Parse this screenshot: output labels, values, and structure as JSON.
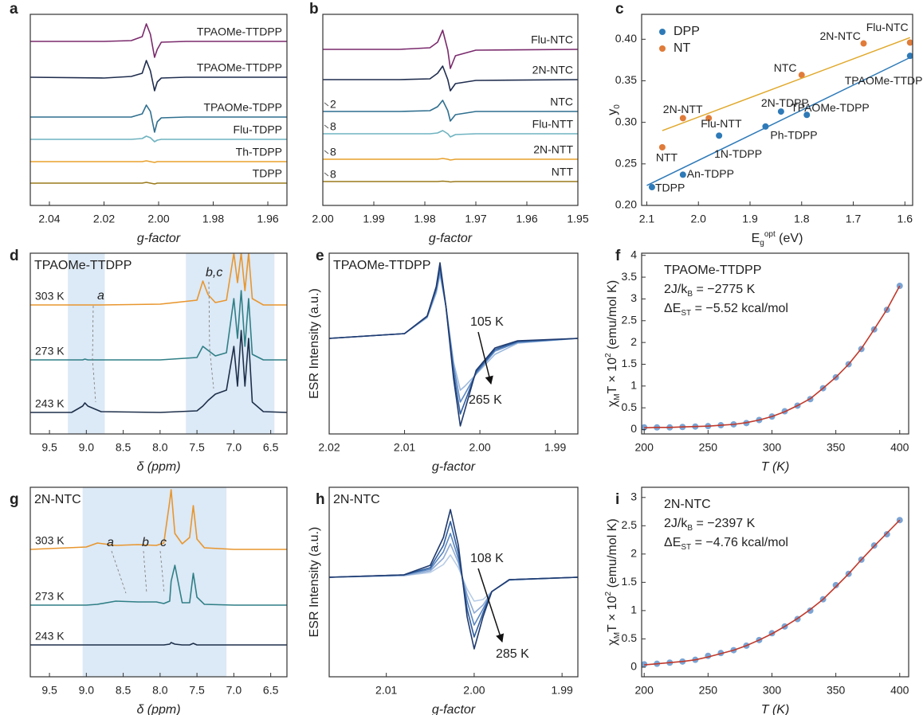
{
  "chart_data": [
    {
      "panel": "a",
      "type": "spectra",
      "x_label": "g-factor",
      "xlim": [
        2.047,
        1.953
      ],
      "xticks": [
        2.04,
        2.02,
        {
          "value": 2,
          "label": "2.00"
        },
        1.98,
        1.96
      ],
      "ylim": [
        0,
        24
      ],
      "series_label_position": "right",
      "x": [
        2.047,
        2.02,
        2.01,
        2.006,
        2.0045,
        2.003,
        2.0015,
        2.0005,
        1.999,
        1.99,
        1.97,
        1.953
      ],
      "series": [
        {
          "name": "TPAOMe-TTDPP",
          "color": "#7a2a6c",
          "values": [
            20.6,
            20.6,
            20.7,
            21.2,
            22.8,
            21.5,
            18.6,
            19.6,
            20.5,
            20.6,
            20.6,
            20.6
          ]
        },
        {
          "name": "TPAOMe-TTDPP",
          "color": "#1f2d4e",
          "values": [
            16.1,
            16.0,
            16.2,
            16.6,
            18.2,
            16.9,
            14.4,
            15.5,
            16.0,
            16.1,
            16.1,
            16.1
          ]
        },
        {
          "name": "TPAOMe-TDPP",
          "color": "#2f6f8f",
          "values": [
            11.1,
            11.1,
            11.1,
            11.5,
            12.6,
            11.8,
            9.2,
            10.5,
            11.0,
            11.1,
            11.1,
            11.1
          ]
        },
        {
          "name": "Flu-TDPP",
          "color": "#6fb3c0",
          "values": [
            8.3,
            8.3,
            8.3,
            8.4,
            8.7,
            8.5,
            8.0,
            8.2,
            8.3,
            8.3,
            8.3,
            8.3
          ]
        },
        {
          "name": "Th-TDPP",
          "color": "#e8a12c",
          "values": [
            5.5,
            5.5,
            5.5,
            5.5,
            5.6,
            5.5,
            5.4,
            5.5,
            5.5,
            5.5,
            5.5,
            5.5
          ]
        },
        {
          "name": "TDPP",
          "color": "#9a7a1c",
          "values": [
            2.8,
            2.8,
            2.8,
            2.8,
            2.9,
            2.8,
            2.7,
            2.8,
            2.8,
            2.8,
            2.8,
            2.8
          ]
        }
      ]
    },
    {
      "panel": "b",
      "type": "spectra",
      "x_label": "g-factor",
      "xlim": [
        2.0,
        1.95
      ],
      "xticks": [
        {
          "value": 2,
          "label": "2.00"
        },
        1.99,
        1.98,
        1.97,
        1.96,
        1.95
      ],
      "ylim": [
        0,
        24
      ],
      "series_label_position": "right",
      "scale_labels": [
        null,
        null,
        "2",
        "8",
        "8",
        "8"
      ],
      "x": [
        2.0,
        1.985,
        1.979,
        1.9775,
        1.9765,
        1.9755,
        1.975,
        1.974,
        1.97,
        1.95
      ],
      "series": [
        {
          "name": "Flu-NTC",
          "color": "#7a2a6c",
          "values": [
            19.6,
            19.6,
            19.8,
            20.5,
            22.0,
            19.5,
            17.2,
            18.8,
            19.5,
            19.6
          ]
        },
        {
          "name": "2N-NTC",
          "color": "#1f2d4e",
          "values": [
            15.8,
            15.8,
            15.9,
            16.6,
            17.5,
            15.8,
            14.4,
            15.3,
            15.7,
            15.8
          ]
        },
        {
          "name": "NTC",
          "color": "#2f6f8f",
          "values": [
            11.8,
            11.8,
            11.9,
            12.4,
            13.2,
            11.9,
            10.6,
            11.4,
            11.8,
            11.8
          ]
        },
        {
          "name": "Flu-NTT",
          "color": "#6fb3c0",
          "values": [
            9.0,
            9.0,
            9.0,
            9.1,
            9.4,
            9.0,
            8.6,
            8.9,
            9.0,
            9.0
          ]
        },
        {
          "name": "2N-NTT",
          "color": "#e8a12c",
          "values": [
            5.8,
            5.8,
            5.8,
            5.8,
            5.9,
            5.8,
            5.7,
            5.8,
            5.8,
            5.8
          ]
        },
        {
          "name": "NTT",
          "color": "#9a7a1c",
          "values": [
            3.0,
            3.0,
            3.0,
            3.0,
            3.05,
            3.0,
            2.95,
            3.0,
            3.0,
            3.0
          ]
        }
      ]
    },
    {
      "panel": "c",
      "type": "scatter",
      "x_label": [
        "E",
        "g",
        "opt",
        " (eV)"
      ],
      "y_label": [
        "y",
        "0"
      ],
      "xlim": [
        2.11,
        1.585
      ],
      "xticks": [
        2.1,
        {
          "value": 2,
          "label": "2.0"
        },
        1.9,
        1.8,
        1.7,
        1.6
      ],
      "ylim": [
        0.2,
        0.43
      ],
      "yticks": [
        {
          "value": 0.2,
          "label": "0.20"
        },
        0.25,
        {
          "value": 0.3,
          "label": "0.30"
        },
        0.35,
        {
          "value": 0.4,
          "label": "0.40"
        }
      ],
      "legend": "upper left",
      "series": [
        {
          "name": "DPP",
          "color": "#2e7ab8",
          "style": "points",
          "x": [
            2.09,
            2.03,
            1.96,
            1.87,
            1.84,
            1.79,
            1.59
          ],
          "values": [
            0.222,
            0.237,
            0.284,
            0.295,
            0.313,
            0.309,
            0.38
          ],
          "point_labels": [
            "TDPP",
            "An-TDPP",
            "1N-TDPP",
            "Ph-TDPP",
            "2N-TDPP",
            "TPAOMe-TDPP",
            "TPAOMe-TTDPP"
          ],
          "fit_x": [
            2.1,
            1.59
          ],
          "fit_values": [
            0.224,
            0.378
          ]
        },
        {
          "name": "NT",
          "color": "#e07b39",
          "style": "points",
          "x": [
            2.07,
            2.03,
            1.98,
            1.8,
            1.68,
            1.59
          ],
          "values": [
            0.27,
            0.305,
            0.305,
            0.357,
            0.395,
            0.396
          ],
          "point_labels": [
            "NTT",
            "2N-NTT",
            "Flu-NTT",
            "NTC",
            "2N-NTC",
            "Flu-NTC"
          ],
          "fit_x": [
            2.07,
            1.59
          ],
          "fit_values": [
            0.29,
            0.402
          ],
          "fit_color": "#e0a82a"
        }
      ]
    },
    {
      "panel": "d",
      "type": "spectra",
      "title": "TPAOMe-TTDPP",
      "x_label": "δ (ppm)",
      "xlim": [
        9.76,
        6.28
      ],
      "xticks": [
        9.5,
        {
          "value": 9,
          "label": "9.0"
        },
        8.5,
        {
          "value": 8,
          "label": "8.0"
        },
        7.5,
        {
          "value": 7,
          "label": "7.0"
        },
        6.5
      ],
      "ylim": [
        0,
        22.7
      ],
      "shaded": [
        [
          9.25,
          8.75
        ],
        [
          7.65,
          6.45
        ]
      ],
      "series_label_position": "left",
      "annotations": [
        "a",
        "b,c"
      ],
      "x": [
        9.76,
        9.2,
        9.05,
        9.02,
        8.98,
        8.8,
        8.0,
        7.5,
        7.42,
        7.35,
        7.25,
        7.1,
        7.0,
        6.95,
        6.9,
        6.85,
        6.8,
        6.75,
        6.6,
        6.28
      ],
      "series": [
        {
          "name": "303 K",
          "color": "#e8962e",
          "values": [
            16.2,
            16.2,
            16.2,
            16.2,
            16.2,
            16.2,
            16.3,
            16.8,
            19.2,
            17.5,
            16.5,
            16.8,
            22.7,
            19,
            22.7,
            18,
            22.7,
            17,
            16.2,
            16.2
          ]
        },
        {
          "name": "273 K",
          "color": "#2f7f86",
          "values": [
            9.3,
            9.3,
            9.3,
            9.4,
            9.3,
            9.3,
            9.3,
            9.6,
            11.0,
            10.5,
            9.8,
            10.2,
            17,
            12,
            18,
            11,
            17,
            10,
            9.3,
            9.3
          ]
        },
        {
          "name": "243 K",
          "color": "#1d2f4a",
          "values": [
            2.7,
            2.7,
            3.5,
            3.9,
            3.5,
            2.8,
            2.7,
            2.9,
            3.5,
            4.2,
            5.0,
            5.5,
            11,
            6,
            13,
            6,
            12,
            4,
            2.8,
            2.7
          ]
        }
      ]
    },
    {
      "panel": "e",
      "type": "spectra",
      "title": "TPAOMe-TTDPP",
      "x_label": "g-factor",
      "y_label": "ESR Intensity (a.u.)",
      "xlim": [
        2.02,
        1.987
      ],
      "xticks": [
        2.02,
        2.01,
        {
          "value": 2,
          "label": "2.00"
        },
        1.99
      ],
      "ylim": [
        -12,
        10.7
      ],
      "annotations": [
        "105 K",
        "265 K"
      ],
      "x": [
        2.02,
        2.01,
        2.007,
        2.0058,
        2.0053,
        2.0045,
        2.0035,
        2.0026,
        2.002,
        2.0005,
        1.998,
        1.995,
        1.987
      ],
      "series": [
        {
          "color": "#9cb8dd",
          "values": [
            0,
            0.6,
            2.6,
            5.7,
            8.0,
            4,
            -3,
            -6.5,
            -6,
            -4.5,
            -2,
            -0.6,
            0
          ]
        },
        {
          "color": "#5b87c0",
          "values": [
            0,
            0.6,
            2.7,
            6.0,
            8.5,
            4,
            -3.5,
            -8,
            -7,
            -4.4,
            -1.6,
            -0.5,
            0
          ]
        },
        {
          "color": "#2f5d9e",
          "values": [
            0,
            0.6,
            2.8,
            6.3,
            9.0,
            4,
            -4.3,
            -9.5,
            -8,
            -4.2,
            -1.4,
            -0.4,
            0
          ]
        },
        {
          "color": "#1f3a6e",
          "values": [
            0,
            0.6,
            2.8,
            6.5,
            9.5,
            4,
            -5,
            -11,
            -9,
            -4,
            -1.2,
            -0.3,
            0
          ]
        }
      ]
    },
    {
      "panel": "f",
      "type": "scatter",
      "title": "TPAOMe-TTDPP",
      "text_lines": [
        [
          "2J/k",
          "B",
          " = −2775 K"
        ],
        [
          "ΔE",
          "ST",
          " = −5.52 kcal/mol"
        ]
      ],
      "x_label": "T (K)",
      "y_label": [
        "χ",
        "M",
        "T × 10",
        "2",
        " (emu/mol K)"
      ],
      "xlim": [
        198,
        407
      ],
      "xticks": [
        200,
        250,
        300,
        350,
        400
      ],
      "ylim": [
        -0.1,
        4.05
      ],
      "yticks": [
        0,
        0.5,
        1,
        1.5,
        2,
        2.5,
        3,
        3.5,
        4
      ],
      "x": [
        200,
        210,
        220,
        230,
        240,
        250,
        260,
        270,
        280,
        290,
        300,
        310,
        320,
        330,
        340,
        350,
        360,
        370,
        380,
        390,
        400
      ],
      "series": [
        {
          "color": "#4f86c6",
          "style": "points",
          "values": [
            0.05,
            0.05,
            0.05,
            0.06,
            0.07,
            0.08,
            0.1,
            0.12,
            0.15,
            0.22,
            0.3,
            0.42,
            0.55,
            0.7,
            0.95,
            1.2,
            1.5,
            1.85,
            2.3,
            2.75,
            3.3
          ]
        },
        {
          "color": "#c0392b",
          "style": "line",
          "values": [
            0.04,
            0.05,
            0.05,
            0.06,
            0.07,
            0.08,
            0.1,
            0.12,
            0.16,
            0.22,
            0.3,
            0.41,
            0.55,
            0.71,
            0.95,
            1.2,
            1.5,
            1.86,
            2.3,
            2.76,
            3.3
          ]
        }
      ]
    },
    {
      "panel": "g",
      "type": "spectra",
      "title": "2N-NTC",
      "x_label": "δ (ppm)",
      "xlim": [
        9.76,
        6.28
      ],
      "xticks": [
        9.5,
        {
          "value": 9,
          "label": "9.0"
        },
        8.5,
        {
          "value": 8,
          "label": "8.0"
        },
        7.5,
        {
          "value": 7,
          "label": "7.0"
        },
        6.5
      ],
      "ylim": [
        0,
        23.8
      ],
      "shaded": [
        [
          9.05,
          7.1
        ]
      ],
      "series_label_position": "left",
      "annotations": [
        "a",
        "b",
        "c"
      ],
      "x": [
        9.76,
        9.0,
        8.85,
        8.6,
        8.3,
        8.05,
        7.95,
        7.87,
        7.85,
        7.8,
        7.7,
        7.6,
        7.55,
        7.5,
        7.4,
        7.0,
        6.28
      ],
      "series": [
        {
          "name": "303 K",
          "color": "#e8962e",
          "values": [
            16,
            16.3,
            16.8,
            16.5,
            16.6,
            16.5,
            16.8,
            22,
            23.5,
            18,
            16.7,
            17.5,
            21.5,
            17.3,
            16.2,
            16,
            16
          ]
        },
        {
          "name": "273 K",
          "color": "#2f7f86",
          "values": [
            9,
            9,
            9.1,
            9.5,
            9.4,
            9.4,
            9.2,
            9.5,
            12,
            14,
            9.3,
            9.3,
            13,
            10,
            9.1,
            9,
            9
          ]
        },
        {
          "name": "243 K",
          "color": "#1d2f4a",
          "values": [
            4,
            4,
            4,
            4,
            4,
            4,
            4,
            4.1,
            4.3,
            4.1,
            4,
            4,
            4.2,
            4,
            4,
            4,
            4
          ]
        }
      ]
    },
    {
      "panel": "h",
      "type": "spectra",
      "title": "2N-NTC",
      "x_label": "g-factor",
      "y_label": "ESR Intensity (a.u.)",
      "xlim": [
        2.0165,
        1.9882
      ],
      "xticks": [
        2.01,
        {
          "value": 2,
          "label": "2.00"
        },
        1.99
      ],
      "ylim": [
        -12.5,
        11.3
      ],
      "annotations": [
        "108 K",
        "285 K"
      ],
      "x": [
        2.0165,
        2.008,
        2.005,
        2.0035,
        2.0027,
        2.0018,
        2.0008,
        2.0,
        1.999,
        1.998,
        1.996,
        1.9882
      ],
      "series": [
        {
          "color": "#b7cce6",
          "values": [
            0,
            0.2,
            0.6,
            1.6,
            2.8,
            1.2,
            -1.5,
            -3,
            -2.8,
            -1.8,
            -0.4,
            0
          ]
        },
        {
          "color": "#8daad4",
          "values": [
            0,
            0.2,
            0.8,
            2.4,
            4.2,
            1.8,
            -2.2,
            -4.5,
            -3.5,
            -1.8,
            -0.3,
            0
          ]
        },
        {
          "color": "#5b87c0",
          "values": [
            0,
            0.3,
            1,
            3.2,
            5.5,
            2.3,
            -3,
            -6,
            -4,
            -1.8,
            -0.3,
            0
          ]
        },
        {
          "color": "#2f5d9e",
          "values": [
            0,
            0.3,
            1.2,
            4,
            7,
            3,
            -4,
            -7.5,
            -4.5,
            -1.8,
            -0.3,
            0
          ]
        },
        {
          "color": "#1f3a6e",
          "values": [
            0,
            0.3,
            1.5,
            5,
            8.5,
            4,
            -5,
            -9,
            -5,
            -1.8,
            -0.3,
            0
          ]
        }
      ]
    },
    {
      "panel": "i",
      "type": "scatter",
      "title": "2N-NTC",
      "text_lines": [
        [
          "2J/k",
          "B",
          " = −2397 K"
        ],
        [
          "ΔE",
          "ST",
          " = −4.76 kcal/mol"
        ]
      ],
      "x_label": "T (K)",
      "y_label": [
        "χ",
        "M",
        "T × 10",
        "2",
        " (emu/mol K)"
      ],
      "xlim": [
        198,
        407
      ],
      "xticks": [
        200,
        250,
        300,
        350,
        400
      ],
      "ylim": [
        -0.17,
        3.18
      ],
      "yticks": [
        0,
        0.5,
        1,
        1.5,
        2,
        2.5,
        3
      ],
      "x": [
        200,
        210,
        220,
        230,
        240,
        250,
        260,
        270,
        280,
        290,
        300,
        310,
        320,
        330,
        340,
        350,
        360,
        370,
        380,
        390,
        400
      ],
      "series": [
        {
          "color": "#4f86c6",
          "style": "points",
          "values": [
            0.05,
            0.06,
            0.08,
            0.1,
            0.13,
            0.2,
            0.25,
            0.3,
            0.38,
            0.48,
            0.6,
            0.72,
            0.85,
            1.0,
            1.2,
            1.45,
            1.65,
            1.9,
            2.15,
            2.35,
            2.6
          ]
        },
        {
          "color": "#c0392b",
          "style": "line",
          "values": [
            0.04,
            0.06,
            0.08,
            0.1,
            0.13,
            0.18,
            0.24,
            0.3,
            0.38,
            0.48,
            0.59,
            0.72,
            0.86,
            1.02,
            1.2,
            1.42,
            1.65,
            1.9,
            2.14,
            2.37,
            2.6
          ]
        }
      ]
    }
  ]
}
